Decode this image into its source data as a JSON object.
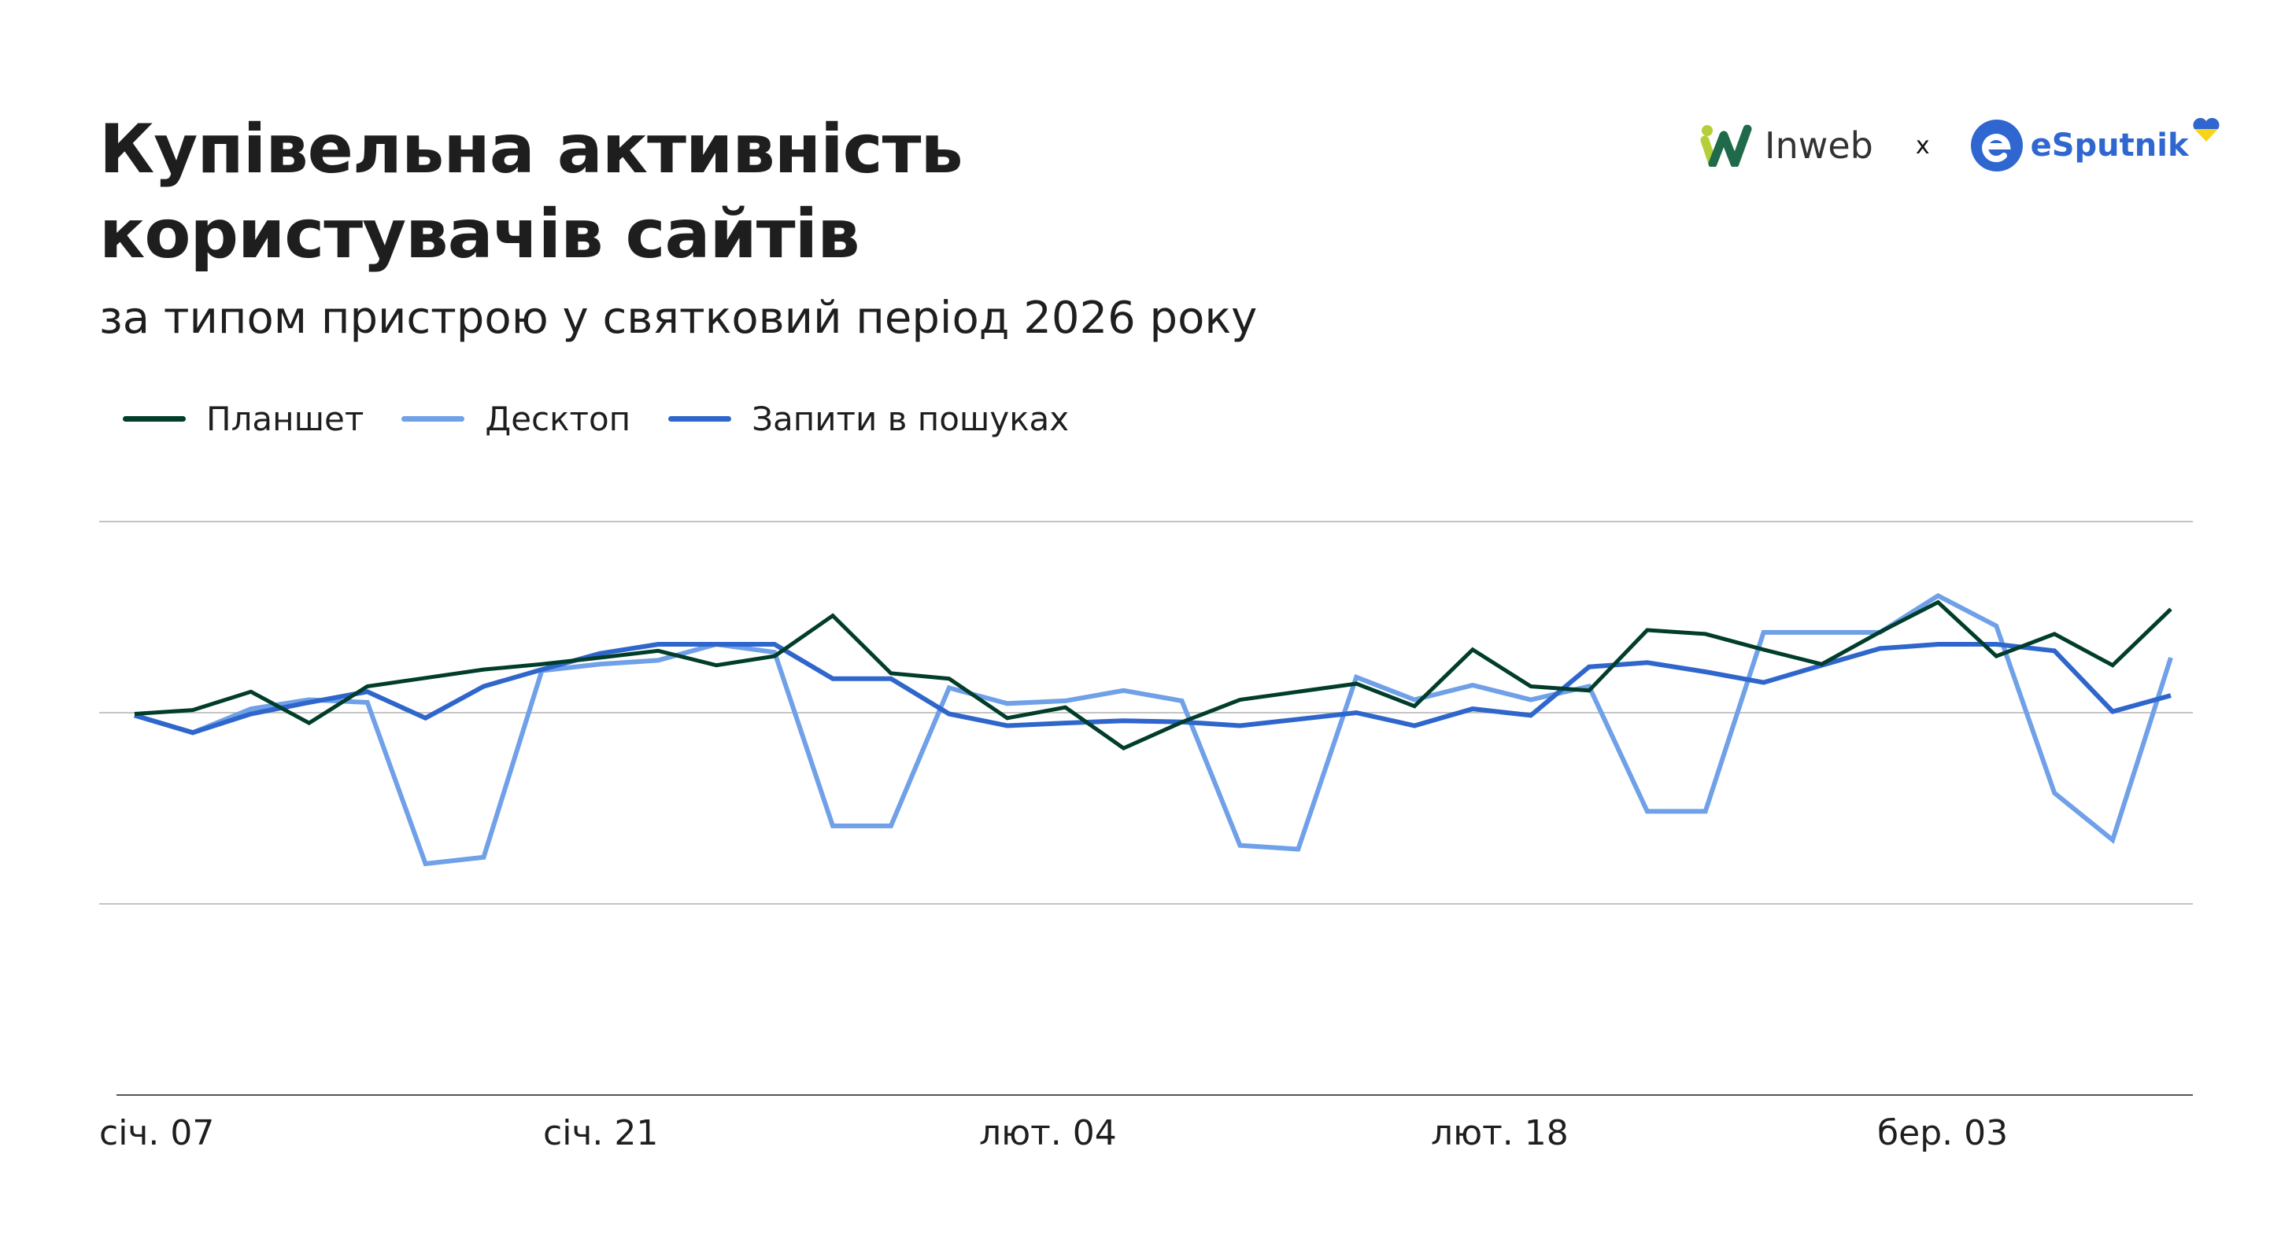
{
  "title_line1": "Купівельна активність",
  "title_line2": "користувачів сайтів",
  "subtitle": "за типом пристрою у святковий період 2026 року",
  "logos": {
    "left": "Inweb",
    "separator": "x",
    "right": "eSputnik"
  },
  "chart_data": {
    "type": "line",
    "title": "Купівельна активність користувачів сайтів",
    "subtitle": "за типом пристрою у святковий період 2026 року",
    "xlabel": "",
    "ylabel": "",
    "x_tick_labels": [
      "січ. 07",
      "січ. 21",
      "лют. 04",
      "лют. 18",
      "бер. 03"
    ],
    "ylim": [
      0,
      150
    ],
    "y_gridlines": [
      50,
      100,
      150
    ],
    "y_tick_labels_shown": false,
    "grid": true,
    "legend": "top-left",
    "series": [
      {
        "name": "Планшет",
        "color": "#013d2b",
        "values": [
          99.7,
          100.7,
          105.5,
          97.3,
          106.9,
          109.1,
          111.3,
          112.7,
          114.4,
          116.2,
          112.4,
          114.8,
          125.4,
          110.3,
          108.9,
          98.6,
          101.4,
          90.7,
          97.5,
          103.4,
          105.5,
          107.6,
          101.7,
          116.5,
          106.9,
          105.8,
          121.6,
          120.6,
          116.5,
          112.7,
          121.1,
          128.9,
          114.8,
          120.6,
          112.4,
          127.1
        ]
      },
      {
        "name": "Десктоп",
        "color": "#6fa0e8",
        "values": [
          99.3,
          94.8,
          101.0,
          103.4,
          102.7,
          60.5,
          62.2,
          111.0,
          112.7,
          113.7,
          117.9,
          115.8,
          70.4,
          70.4,
          106.5,
          102.4,
          103.1,
          105.8,
          103.1,
          65.3,
          64.3,
          109.3,
          103.4,
          107.2,
          103.4,
          106.9,
          74.2,
          74.2,
          121.0,
          121.0,
          121.0,
          130.6,
          122.7,
          79.0,
          66.7,
          114.4
        ]
      },
      {
        "name": "Запити в пошуках",
        "color": "#2f66cc",
        "values": [
          99.3,
          94.8,
          99.7,
          102.7,
          105.5,
          98.6,
          106.9,
          111.3,
          115.5,
          117.9,
          117.9,
          117.9,
          108.9,
          108.9,
          99.7,
          96.6,
          97.3,
          97.9,
          97.6,
          96.6,
          98.3,
          100.0,
          96.6,
          101.0,
          99.3,
          112.0,
          113.1,
          110.7,
          107.9,
          112.4,
          116.8,
          117.9,
          117.9,
          116.2,
          100.3,
          104.5
        ]
      }
    ]
  }
}
